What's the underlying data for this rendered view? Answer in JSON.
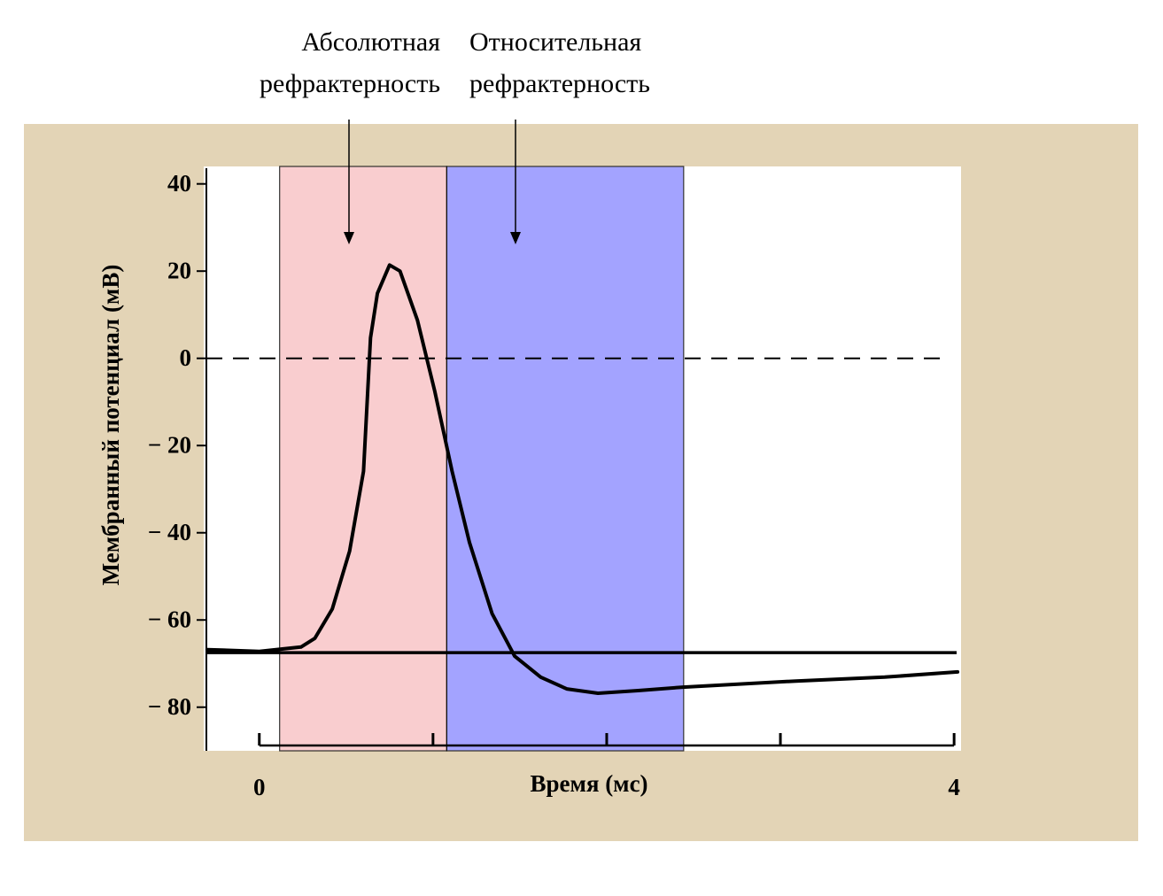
{
  "chart_data": {
    "type": "line",
    "ylabel": "Мембранный потенциал (мВ)",
    "xlabel": "Время (мс)",
    "annotations": [
      {
        "text": [
          "Абсолютная",
          "рефрактерность"
        ]
      },
      {
        "text": [
          "Относительная",
          "рефрактерность"
        ]
      }
    ],
    "regions": [
      {
        "start": 0.117,
        "end": 1.079,
        "color": "#f9cdcf"
      },
      {
        "start": 1.079,
        "end": 2.443,
        "color": "#a3a3ff"
      }
    ],
    "hlines": [
      {
        "value": 0,
        "dashed": true
      },
      {
        "value": -67.5,
        "dashed": false
      }
    ],
    "series": [
      {
        "color": "#000000",
        "x": [
          -0.3,
          0,
          0.24,
          0.32,
          0.42,
          0.52,
          0.6,
          0.64,
          0.68,
          0.75,
          0.81,
          0.91,
          1.01,
          1.11,
          1.21,
          1.34,
          1.47,
          1.62,
          1.77,
          1.95,
          2.18,
          2.44,
          3.09,
          3.6,
          4.02
        ],
        "values": [
          -66.8,
          -67.2,
          -66.2,
          -64.2,
          -57.5,
          -44.2,
          -25.9,
          4.7,
          14.9,
          21.4,
          20.0,
          8.8,
          -7.5,
          -25.9,
          -42.2,
          -58.5,
          -68.3,
          -73.1,
          -75.8,
          -76.8,
          -76.2,
          -75.4,
          -74.0,
          -73.1,
          -71.9
        ]
      }
    ],
    "xlim": [
      -0.32,
      4.04
    ],
    "xticks": [
      0,
      4
    ],
    "xminor_ticks": [
      1,
      2,
      3
    ],
    "ylim": [
      -90,
      44
    ],
    "yticks": [
      40,
      20,
      0,
      {
        "value": -20,
        "label": "− 20"
      },
      {
        "value": -40,
        "label": "− 40"
      },
      {
        "value": -60,
        "label": "− 60"
      },
      {
        "value": -80,
        "label": "− 80"
      }
    ]
  }
}
